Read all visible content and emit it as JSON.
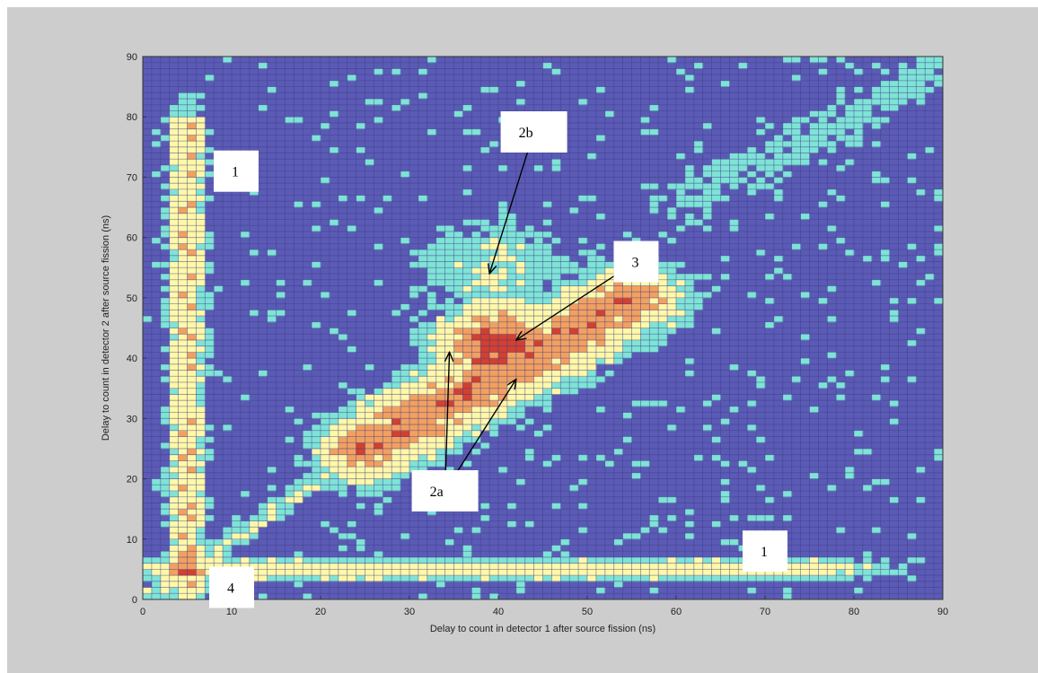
{
  "chart_data": {
    "type": "heatmap",
    "xlabel": "Delay to count in detector 1 after source fission (ns)",
    "ylabel": "Delay to count in detector 2 after source fission (ns)",
    "xlim": [
      0,
      90
    ],
    "ylim": [
      0,
      90
    ],
    "xticks": [
      "0",
      "10",
      "20",
      "30",
      "40",
      "50",
      "60",
      "70",
      "80",
      "90"
    ],
    "yticks": [
      "0",
      "10",
      "20",
      "30",
      "40",
      "50",
      "60",
      "70",
      "80",
      "90"
    ],
    "grid": true,
    "colormap": [
      "#5b5bb5",
      "#7fe3d6",
      "#fff8a8",
      "#f2a060",
      "#d24030"
    ],
    "features": [
      {
        "label": "1",
        "shape": "vertical band",
        "x_center": 5,
        "y_range": [
          5,
          75
        ],
        "intensity": 0.7
      },
      {
        "label": "1",
        "shape": "horizontal band",
        "y_center": 5,
        "x_range": [
          5,
          75
        ],
        "intensity": 0.6
      },
      {
        "label": "2a",
        "shape": "diagonal ridge",
        "from": [
          25,
          25
        ],
        "to": [
          55,
          50
        ],
        "intensity": 0.85
      },
      {
        "label": "2b",
        "shape": "diffuse ridge",
        "center": [
          40,
          55
        ],
        "intensity": 0.45
      },
      {
        "label": "3",
        "shape": "peak",
        "center": [
          40,
          42
        ],
        "intensity": 1.0
      },
      {
        "label": "4",
        "shape": "peak",
        "center": [
          5,
          5
        ],
        "intensity": 1.0
      }
    ],
    "annotations": [
      {
        "text": "1",
        "x": 10.5,
        "y": 71
      },
      {
        "text": "1",
        "x": 70,
        "y": 8
      },
      {
        "text": "2b",
        "x": 44,
        "y": 77.5,
        "arrows_to": [
          [
            39,
            54
          ]
        ]
      },
      {
        "text": "3",
        "x": 55.5,
        "y": 56,
        "arrows_to": [
          [
            42,
            43
          ]
        ]
      },
      {
        "text": "2a",
        "x": 34,
        "y": 18,
        "arrows_to": [
          [
            34.5,
            41
          ],
          [
            42,
            36.5
          ]
        ]
      },
      {
        "text": "4",
        "x": 10,
        "y": 2
      }
    ]
  }
}
